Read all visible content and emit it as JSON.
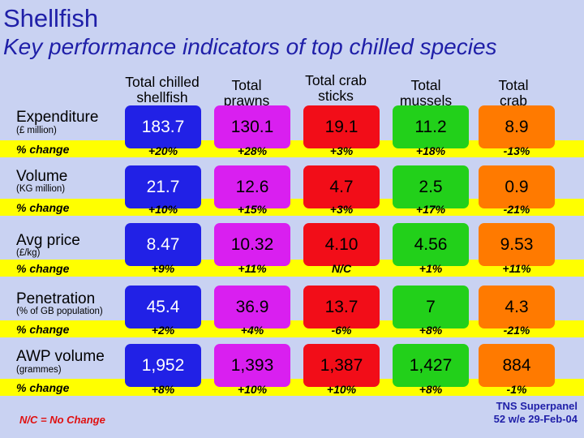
{
  "title": "Shellfish",
  "subtitle": "Key performance indicators of top chilled species",
  "columns": [
    {
      "line1": "Total chilled",
      "line2": "shellfish"
    },
    {
      "line1": "Total",
      "line2": "prawns"
    },
    {
      "line1": "Total crab",
      "line2": "sticks"
    },
    {
      "line1": "Total",
      "line2": "mussels"
    },
    {
      "line1": "Total",
      "line2": "crab"
    }
  ],
  "change_label": "% change",
  "rows": [
    {
      "label": "Expenditure",
      "sub": "(£ million)",
      "values": [
        "183.7",
        "130.1",
        "19.1",
        "11.2",
        "8.9"
      ],
      "changes": [
        "+20%",
        "+28%",
        "+3%",
        "+18%",
        "-13%"
      ]
    },
    {
      "label": "Volume",
      "sub": "(KG million)",
      "values": [
        "21.7",
        "12.6",
        "4.7",
        "2.5",
        "0.9"
      ],
      "changes": [
        "+10%",
        "+15%",
        "+3%",
        "+17%",
        "-21%"
      ]
    },
    {
      "label": "Avg price",
      "sub": "(£/kg)",
      "values": [
        "8.47",
        "10.32",
        "4.10",
        "4.56",
        "9.53"
      ],
      "changes": [
        "+9%",
        "+11%",
        "N/C",
        "+1%",
        "+11%"
      ]
    },
    {
      "label": "Penetration",
      "sub": "(% of GB population)",
      "values": [
        "45.4",
        "36.9",
        "13.7",
        "7",
        "4.3"
      ],
      "changes": [
        "+2%",
        "+4%",
        "-6%",
        "+8%",
        "-21%"
      ]
    },
    {
      "label": "AWP volume",
      "sub": "(grammes)",
      "values": [
        "1,952",
        "1,393",
        "1,387",
        "1,427",
        "884"
      ],
      "changes": [
        "+8%",
        "+10%",
        "+10%",
        "+8%",
        "-1%"
      ]
    }
  ],
  "footnote": "N/C = No Change",
  "source_line1": "TNS Superpanel",
  "source_line2": "52 w/e 29-Feb-04",
  "colors": {
    "background": "#c9d2f2",
    "band": "#ffff00",
    "title": "#1f1fa8",
    "footnote": "#e01010",
    "box": [
      "#2121e6",
      "#d91ff0",
      "#f20d18",
      "#22d01a",
      "#ff7a00"
    ]
  }
}
